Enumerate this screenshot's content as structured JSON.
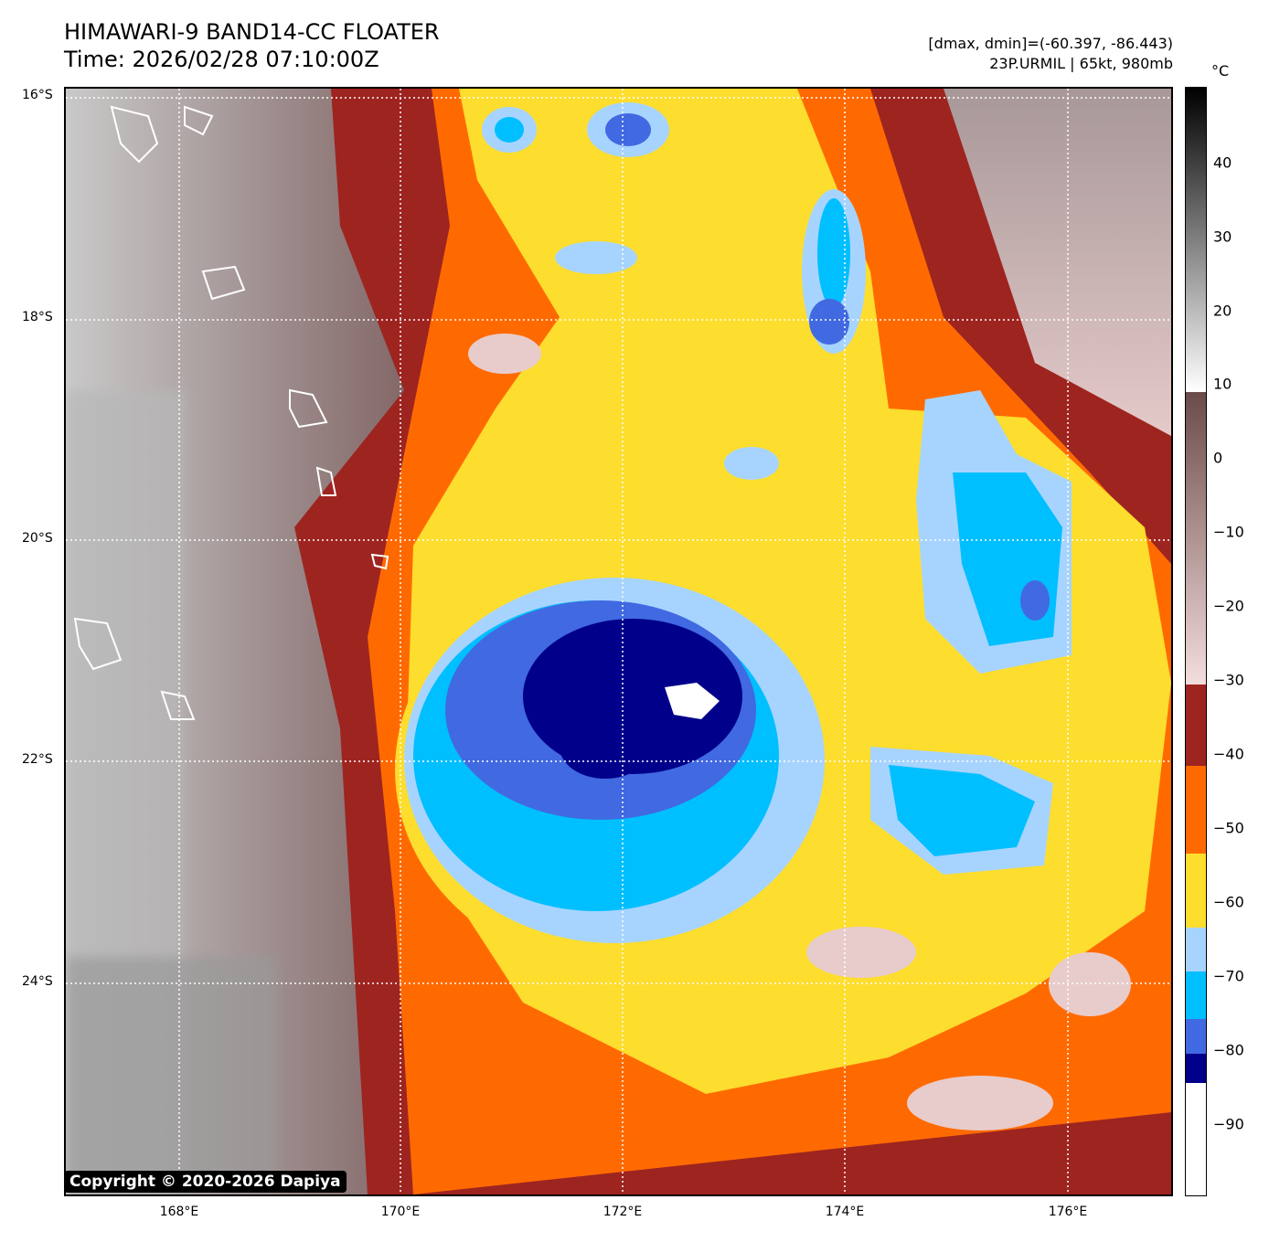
{
  "header": {
    "title_line1": "HIMAWARI-9 BAND14-CC FLOATER",
    "title_line2": "Time: 2026/02/28 07:10:00Z",
    "range_line": "[dmax, dmin]=(-60.397, -86.443)",
    "storm_line": "23P.URMIL | 65kt, 980mb"
  },
  "axes": {
    "lat_labels": [
      "16°S",
      "18°S",
      "20°S",
      "22°S",
      "24°S"
    ],
    "lon_labels": [
      "168°E",
      "170°E",
      "172°E",
      "174°E",
      "176°E"
    ]
  },
  "colorbar": {
    "unit": "°C",
    "ticks": [
      "40",
      "30",
      "20",
      "10",
      "0",
      "−10",
      "−20",
      "−30",
      "−40",
      "−50",
      "−60",
      "−70",
      "−80",
      "−90"
    ],
    "colors": {
      "above_10": "grey-to-black gradient",
      "minus30_to_10": "#6b4a4a to #f4dddd",
      "minus40": "#9e2420",
      "minus50": "#ff6a00",
      "minus60": "#fddd2e",
      "minus65": "#a7d4ff",
      "minus70": "#00bfff",
      "minus80": "#4169e1",
      "minus85": "#00008b",
      "minus90": "#ffffff"
    }
  },
  "footer": {
    "copyright": "Copyright © 2020-2026 Dapiya"
  }
}
